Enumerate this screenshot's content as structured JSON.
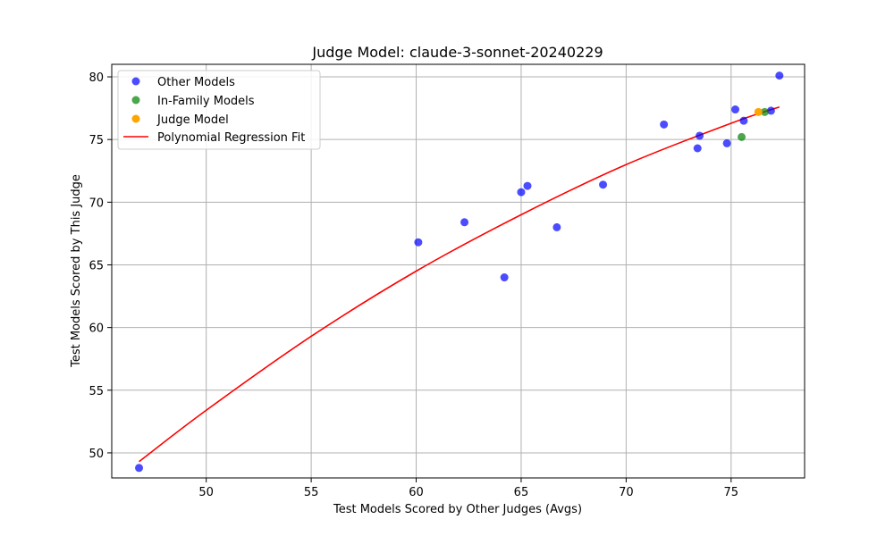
{
  "chart_data": {
    "type": "scatter",
    "title": "Judge Model: claude-3-sonnet-20240229",
    "xlabel": "Test Models Scored by Other Judges (Avgs)",
    "ylabel": "Test Models Scored by This Judge",
    "xlim": [
      45.5,
      78.5
    ],
    "ylim": [
      48,
      81
    ],
    "xticks": [
      50,
      55,
      60,
      65,
      70,
      75
    ],
    "yticks": [
      50,
      55,
      60,
      65,
      70,
      75,
      80
    ],
    "grid": true,
    "legend_position": "top-left",
    "series": [
      {
        "name": "Other Models",
        "color": "#0000ff",
        "points": [
          {
            "x": 46.8,
            "y": 48.8
          },
          {
            "x": 60.1,
            "y": 66.8
          },
          {
            "x": 62.3,
            "y": 68.4
          },
          {
            "x": 64.2,
            "y": 64.0
          },
          {
            "x": 65.0,
            "y": 70.8
          },
          {
            "x": 65.3,
            "y": 71.3
          },
          {
            "x": 66.7,
            "y": 68.0
          },
          {
            "x": 68.9,
            "y": 71.4
          },
          {
            "x": 71.8,
            "y": 76.2
          },
          {
            "x": 73.4,
            "y": 74.3
          },
          {
            "x": 73.5,
            "y": 75.3
          },
          {
            "x": 74.8,
            "y": 74.7
          },
          {
            "x": 75.2,
            "y": 77.4
          },
          {
            "x": 75.6,
            "y": 76.5
          },
          {
            "x": 76.9,
            "y": 77.3
          },
          {
            "x": 77.3,
            "y": 80.1
          }
        ]
      },
      {
        "name": "In-Family Models",
        "color": "#008000",
        "points": [
          {
            "x": 75.5,
            "y": 75.2
          },
          {
            "x": 76.6,
            "y": 77.2
          }
        ]
      },
      {
        "name": "Judge Model",
        "color": "#ffa500",
        "points": [
          {
            "x": 76.3,
            "y": 77.2
          }
        ]
      }
    ],
    "fit": {
      "name": "Polynomial Regression Fit",
      "color": "#ff0000",
      "points": [
        {
          "x": 46.8,
          "y": 49.3
        },
        {
          "x": 50.0,
          "y": 53.4
        },
        {
          "x": 55.0,
          "y": 59.3
        },
        {
          "x": 60.0,
          "y": 64.5
        },
        {
          "x": 65.0,
          "y": 69.0
        },
        {
          "x": 70.0,
          "y": 73.0
        },
        {
          "x": 75.0,
          "y": 76.3
        },
        {
          "x": 77.3,
          "y": 77.6
        }
      ]
    }
  }
}
